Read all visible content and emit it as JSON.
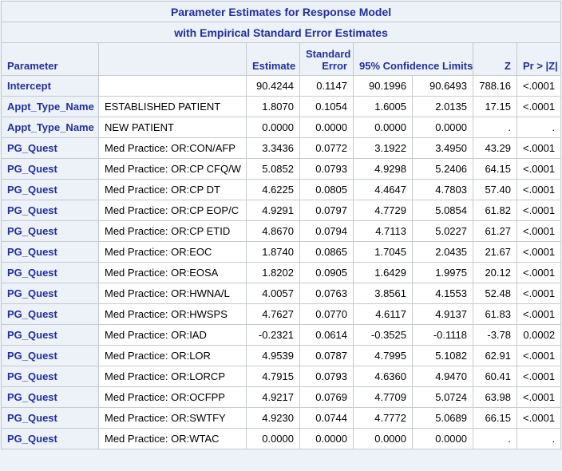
{
  "colors": {
    "page_bg": "#edf1f8",
    "header_bg": "#edf1f8",
    "cell_bg": "#ffffff",
    "accent": "#21309c",
    "data_text": "#000000",
    "border_inner": "#c6cacf",
    "border_outer": "#a9aeb5"
  },
  "table": {
    "title1": "Parameter Estimates for Response Model",
    "title2": "with Empirical  Standard Error Estimates",
    "headers": {
      "parameter": "Parameter",
      "level": "",
      "estimate": "Estimate",
      "stderr": "Standard\nError",
      "ci": "95% Confidence Limits",
      "z": "Z",
      "p": "Pr > |Z|"
    },
    "rows": [
      {
        "parameter": "Intercept",
        "level": "",
        "estimate": "90.4244",
        "stderr": "0.1147",
        "ci_lower": "90.1996",
        "ci_upper": "90.6493",
        "z": "788.16",
        "p": "<.0001"
      },
      {
        "parameter": "Appt_Type_Name",
        "level": "ESTABLISHED PATIENT",
        "estimate": "1.8070",
        "stderr": "0.1054",
        "ci_lower": "1.6005",
        "ci_upper": "2.0135",
        "z": "17.15",
        "p": "<.0001"
      },
      {
        "parameter": "Appt_Type_Name",
        "level": "NEW PATIENT",
        "estimate": "0.0000",
        "stderr": "0.0000",
        "ci_lower": "0.0000",
        "ci_upper": "0.0000",
        "z": ".",
        "p": "."
      },
      {
        "parameter": "PG_Quest",
        "level": "Med Practice: OR:CON/AFP",
        "estimate": "3.3436",
        "stderr": "0.0772",
        "ci_lower": "3.1922",
        "ci_upper": "3.4950",
        "z": "43.29",
        "p": "<.0001"
      },
      {
        "parameter": "PG_Quest",
        "level": "Med Practice: OR:CP CFQ/W",
        "estimate": "5.0852",
        "stderr": "0.0793",
        "ci_lower": "4.9298",
        "ci_upper": "5.2406",
        "z": "64.15",
        "p": "<.0001"
      },
      {
        "parameter": "PG_Quest",
        "level": "Med Practice: OR:CP DT",
        "estimate": "4.6225",
        "stderr": "0.0805",
        "ci_lower": "4.4647",
        "ci_upper": "4.7803",
        "z": "57.40",
        "p": "<.0001"
      },
      {
        "parameter": "PG_Quest",
        "level": "Med Practice: OR:CP EOP/C",
        "estimate": "4.9291",
        "stderr": "0.0797",
        "ci_lower": "4.7729",
        "ci_upper": "5.0854",
        "z": "61.82",
        "p": "<.0001"
      },
      {
        "parameter": "PG_Quest",
        "level": "Med Practice: OR:CP ETID",
        "estimate": "4.8670",
        "stderr": "0.0794",
        "ci_lower": "4.7113",
        "ci_upper": "5.0227",
        "z": "61.27",
        "p": "<.0001"
      },
      {
        "parameter": "PG_Quest",
        "level": "Med Practice: OR:EOC",
        "estimate": "1.8740",
        "stderr": "0.0865",
        "ci_lower": "1.7045",
        "ci_upper": "2.0435",
        "z": "21.67",
        "p": "<.0001"
      },
      {
        "parameter": "PG_Quest",
        "level": "Med Practice: OR:EOSA",
        "estimate": "1.8202",
        "stderr": "0.0905",
        "ci_lower": "1.6429",
        "ci_upper": "1.9975",
        "z": "20.12",
        "p": "<.0001"
      },
      {
        "parameter": "PG_Quest",
        "level": "Med Practice: OR:HWNA/L",
        "estimate": "4.0057",
        "stderr": "0.0763",
        "ci_lower": "3.8561",
        "ci_upper": "4.1553",
        "z": "52.48",
        "p": "<.0001"
      },
      {
        "parameter": "PG_Quest",
        "level": "Med Practice: OR:HWSPS",
        "estimate": "4.7627",
        "stderr": "0.0770",
        "ci_lower": "4.6117",
        "ci_upper": "4.9137",
        "z": "61.83",
        "p": "<.0001"
      },
      {
        "parameter": "PG_Quest",
        "level": "Med Practice: OR:IAD",
        "estimate": "-0.2321",
        "stderr": "0.0614",
        "ci_lower": "-0.3525",
        "ci_upper": "-0.1118",
        "z": "-3.78",
        "p": "0.0002"
      },
      {
        "parameter": "PG_Quest",
        "level": "Med Practice: OR:LOR",
        "estimate": "4.9539",
        "stderr": "0.0787",
        "ci_lower": "4.7995",
        "ci_upper": "5.1082",
        "z": "62.91",
        "p": "<.0001"
      },
      {
        "parameter": "PG_Quest",
        "level": "Med Practice: OR:LORCP",
        "estimate": "4.7915",
        "stderr": "0.0793",
        "ci_lower": "4.6360",
        "ci_upper": "4.9470",
        "z": "60.41",
        "p": "<.0001"
      },
      {
        "parameter": "PG_Quest",
        "level": "Med Practice: OR:OCFPP",
        "estimate": "4.9217",
        "stderr": "0.0769",
        "ci_lower": "4.7709",
        "ci_upper": "5.0724",
        "z": "63.98",
        "p": "<.0001"
      },
      {
        "parameter": "PG_Quest",
        "level": "Med Practice: OR:SWTFY",
        "estimate": "4.9230",
        "stderr": "0.0744",
        "ci_lower": "4.7772",
        "ci_upper": "5.0689",
        "z": "66.15",
        "p": "<.0001"
      },
      {
        "parameter": "PG_Quest",
        "level": "Med Practice: OR:WTAC",
        "estimate": "0.0000",
        "stderr": "0.0000",
        "ci_lower": "0.0000",
        "ci_upper": "0.0000",
        "z": ".",
        "p": "."
      }
    ]
  }
}
